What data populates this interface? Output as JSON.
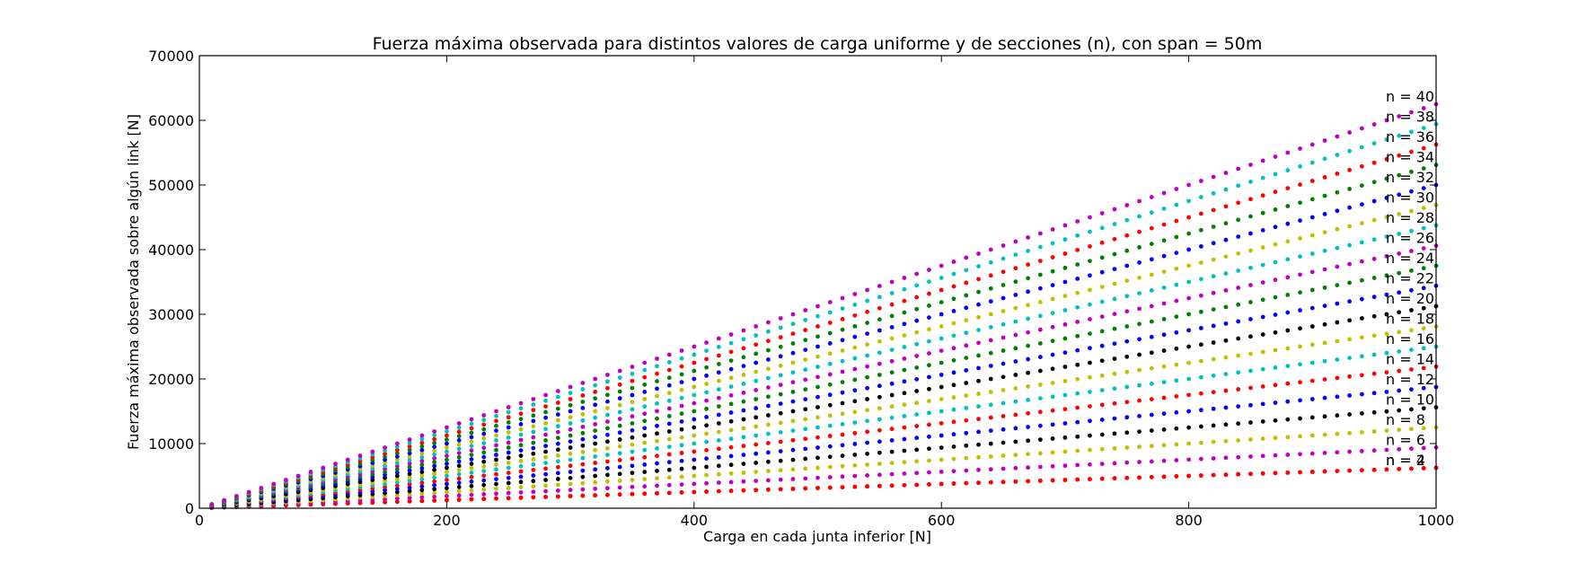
{
  "chart_data": {
    "type": "scatter",
    "title": "Fuerza máxima observada para distintos valores de carga uniforme y de secciones (n), con span = 50m",
    "xlabel": "Carga en cada junta inferior [N]",
    "ylabel": "Fuerza máxima observada sobre algún link [N]",
    "xlim": [
      0,
      1000
    ],
    "ylim": [
      0,
      70000
    ],
    "xticks": [
      0,
      200,
      400,
      600,
      800,
      1000
    ],
    "yticks": [
      0,
      10000,
      20000,
      30000,
      40000,
      50000,
      60000,
      70000
    ],
    "grid": false,
    "legend": "none",
    "x_sampling": {
      "start": 10,
      "stop": 1000,
      "step": 10
    },
    "series": [
      {
        "label": "n = 4",
        "color": "#ff0000",
        "slope": 6.25
      },
      {
        "label": "n = 2",
        "color": "#ff0000",
        "slope": 6.25
      },
      {
        "label": "n = 6",
        "color": "#c000c0",
        "slope": 9.4
      },
      {
        "label": "n = 8",
        "color": "#c0c000",
        "slope": 12.5
      },
      {
        "label": "n = 10",
        "color": "#000000",
        "slope": 15.6
      },
      {
        "label": "n = 12",
        "color": "#0000ff",
        "slope": 18.75
      },
      {
        "label": "n = 14",
        "color": "#ff0000",
        "slope": 21.9
      },
      {
        "label": "n = 16",
        "color": "#00c0c0",
        "slope": 25.0
      },
      {
        "label": "n = 18",
        "color": "#c0c000",
        "slope": 28.1
      },
      {
        "label": "n = 20",
        "color": "#000000",
        "slope": 31.25
      },
      {
        "label": "n = 22",
        "color": "#0000ff",
        "slope": 34.4
      },
      {
        "label": "n = 24",
        "color": "#008000",
        "slope": 37.5
      },
      {
        "label": "n = 26",
        "color": "#c000c0",
        "slope": 40.6
      },
      {
        "label": "n = 28",
        "color": "#00c0c0",
        "slope": 43.75
      },
      {
        "label": "n = 30",
        "color": "#c0c000",
        "slope": 46.9
      },
      {
        "label": "n = 32",
        "color": "#0000ff",
        "slope": 50.0
      },
      {
        "label": "n = 34",
        "color": "#008000",
        "slope": 53.1
      },
      {
        "label": "n = 36",
        "color": "#ff0000",
        "slope": 56.25
      },
      {
        "label": "n = 38",
        "color": "#00c0c0",
        "slope": 59.4
      },
      {
        "label": "n = 40",
        "color": "#c000c0",
        "slope": 62.5
      }
    ]
  }
}
